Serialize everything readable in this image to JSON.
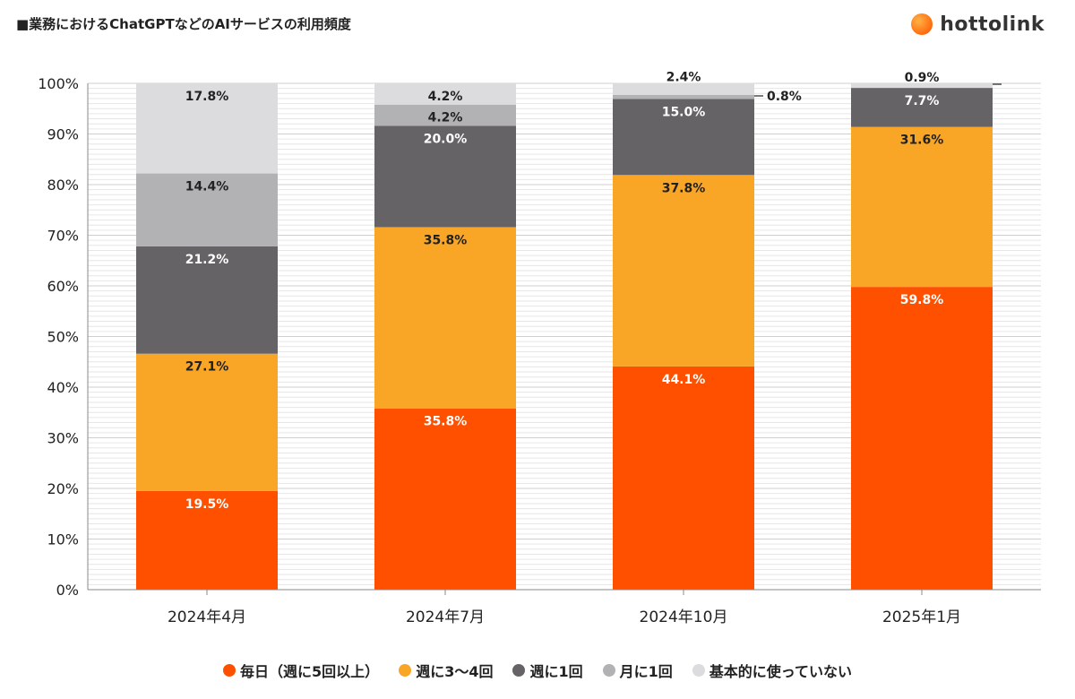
{
  "header": {
    "title": "■業務におけるChatGPTなどのAIサービスの利用頻度",
    "brand": "hottolink"
  },
  "chart_data": {
    "type": "bar",
    "stacked": true,
    "title": "■業務におけるChatGPTなどのAIサービスの利用頻度",
    "xlabel": "",
    "ylabel": "",
    "ylim": [
      0,
      100
    ],
    "yticks": [
      0,
      10,
      20,
      30,
      40,
      50,
      60,
      70,
      80,
      90,
      100
    ],
    "ytick_labels": [
      "0%",
      "10%",
      "20%",
      "30%",
      "40%",
      "50%",
      "60%",
      "70%",
      "80%",
      "90%",
      "100%"
    ],
    "categories": [
      "2024年4月",
      "2024年7月",
      "2024年10月",
      "2025年1月"
    ],
    "series": [
      {
        "name": "毎日（週に5回以上）",
        "color": "#ff5000",
        "label_color": "#ffffff",
        "values": [
          19.5,
          35.8,
          44.1,
          59.8
        ]
      },
      {
        "name": "週に3〜4回",
        "color": "#f9a626",
        "label_color": "#222222",
        "values": [
          27.1,
          35.8,
          37.8,
          31.6
        ]
      },
      {
        "name": "週に1回",
        "color": "#666366",
        "label_color": "#ffffff",
        "values": [
          21.2,
          20.0,
          15.0,
          7.7
        ]
      },
      {
        "name": "月に1回",
        "color": "#b2b1b4",
        "label_color": "#222222",
        "values": [
          14.4,
          4.2,
          0.8,
          0
        ]
      },
      {
        "name": "基本的に使っていない",
        "color": "#dcdbde",
        "label_color": "#222222",
        "values": [
          17.8,
          4.2,
          2.4,
          0.9
        ]
      }
    ],
    "data_labels": [
      [
        "19.5%",
        "27.1%",
        "21.2%",
        "14.4%",
        "17.8%"
      ],
      [
        "35.8%",
        "35.8%",
        "20.0%",
        "4.2%",
        "4.2%"
      ],
      [
        "44.1%",
        "37.8%",
        "15.0%",
        "0.8%",
        "2.4%"
      ],
      [
        "59.8%",
        "31.6%",
        "7.7%",
        "",
        "0.9%"
      ]
    ],
    "legend_position": "bottom",
    "grid": true
  }
}
